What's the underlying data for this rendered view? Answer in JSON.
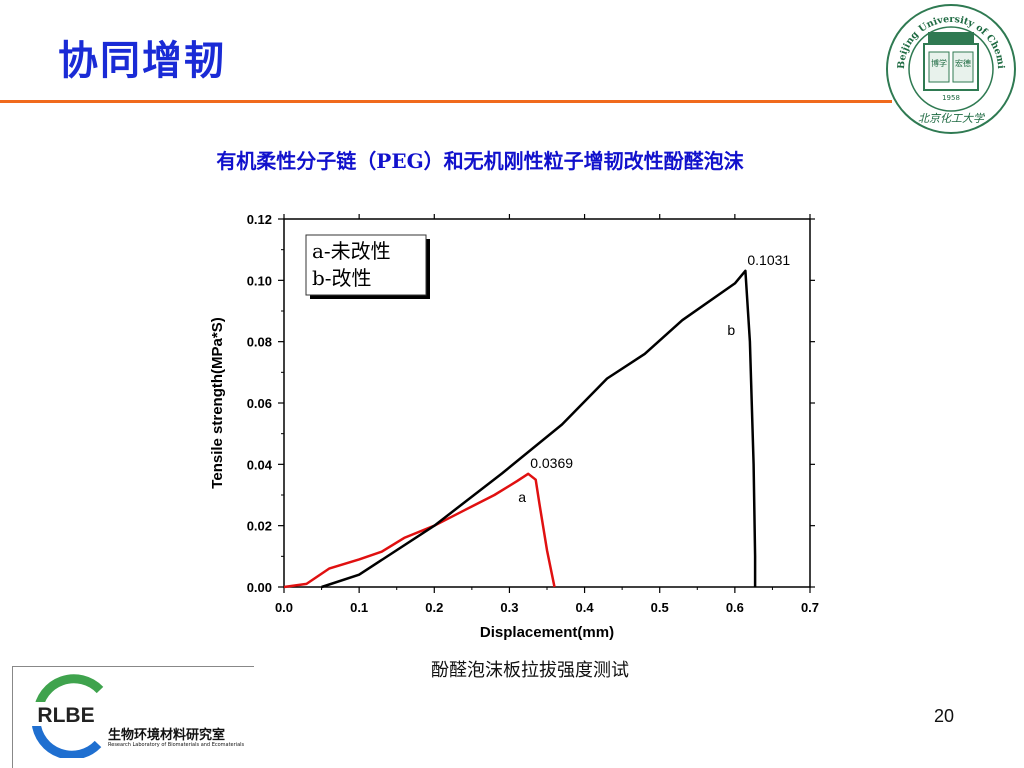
{
  "slide": {
    "title": "协同增韧",
    "subtitle": "有机柔性分子链（PEG）和无机刚性粒子增韧改性酚醛泡沫",
    "caption": "酚醛泡沫板拉拔强度测试",
    "page_number": "20",
    "accent_color": "#f06a1c",
    "title_color": "#1a2bd6"
  },
  "logo": {
    "text_top": "Beijing University of Chemical Technology",
    "year": "1958",
    "panel_left": "博学",
    "panel_right": "宏德",
    "script": "北京化工大学"
  },
  "footer": {
    "logo_text": "RLBE",
    "lab_name": "生物环境材料研究室",
    "lab_name_en": "Research Laboratory of Biomaterials and Ecomaterials"
  },
  "chart_data": {
    "type": "line",
    "xlabel": "Displacement(mm)",
    "ylabel": "Tensile strength(MPa*S)",
    "xlim": [
      0,
      0.7
    ],
    "ylim": [
      0,
      0.12
    ],
    "xticks": [
      "0.0",
      "0.1",
      "0.2",
      "0.3",
      "0.4",
      "0.5",
      "0.6",
      "0.7"
    ],
    "yticks": [
      "0.00",
      "0.02",
      "0.04",
      "0.06",
      "0.08",
      "0.10",
      "0.12"
    ],
    "legend": [
      "a-未改性",
      "b-改性"
    ],
    "legend_position": "top-left",
    "series": [
      {
        "label": "a",
        "color": "#e01010",
        "points": [
          [
            0.0,
            0.0
          ],
          [
            0.03,
            0.001
          ],
          [
            0.06,
            0.006
          ],
          [
            0.1,
            0.009
          ],
          [
            0.13,
            0.0115
          ],
          [
            0.16,
            0.016
          ],
          [
            0.2,
            0.02
          ],
          [
            0.24,
            0.025
          ],
          [
            0.28,
            0.03
          ],
          [
            0.31,
            0.0345
          ],
          [
            0.325,
            0.0369
          ],
          [
            0.335,
            0.035
          ],
          [
            0.34,
            0.027
          ],
          [
            0.35,
            0.012
          ],
          [
            0.36,
            0.0
          ]
        ],
        "peak_label": "0.0369",
        "peak": [
          0.325,
          0.0369
        ]
      },
      {
        "label": "b",
        "color": "#000000",
        "points": [
          [
            0.05,
            0.0
          ],
          [
            0.1,
            0.004
          ],
          [
            0.2,
            0.02
          ],
          [
            0.29,
            0.037
          ],
          [
            0.37,
            0.053
          ],
          [
            0.43,
            0.068
          ],
          [
            0.48,
            0.076
          ],
          [
            0.53,
            0.087
          ],
          [
            0.6,
            0.099
          ],
          [
            0.614,
            0.1031
          ],
          [
            0.62,
            0.08
          ],
          [
            0.625,
            0.04
          ],
          [
            0.627,
            0.01
          ],
          [
            0.627,
            0.0
          ]
        ],
        "peak_label": "0.1031",
        "peak": [
          0.614,
          0.1031
        ]
      }
    ]
  }
}
